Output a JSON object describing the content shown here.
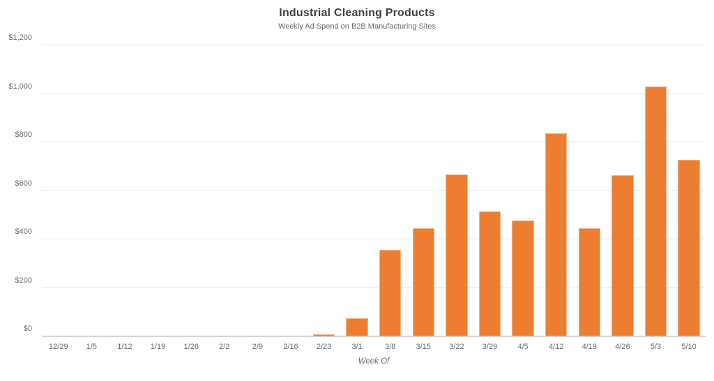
{
  "chart_data": {
    "type": "bar",
    "title": "Industrial Cleaning Products",
    "subtitle": "Weekly Ad Spend on B2B Manufacturing Sites",
    "xlabel": "Week Of",
    "ylabel": "",
    "ylim": [
      0,
      1200
    ],
    "grid": "horizontal",
    "legend_position": "none",
    "categories": [
      "12/29",
      "1/5",
      "1/12",
      "1/19",
      "1/26",
      "2/2",
      "2/9",
      "2/16",
      "2/23",
      "3/1",
      "3/8",
      "3/15",
      "3/22",
      "3/29",
      "4/5",
      "4/12",
      "4/19",
      "4/26",
      "5/3",
      "5/10"
    ],
    "values": [
      0,
      0,
      0,
      0,
      0,
      0,
      0,
      0,
      10,
      75,
      358,
      445,
      668,
      514,
      479,
      838,
      445,
      664,
      1030,
      727
    ],
    "yticks": [
      {
        "value": 0,
        "label": "$0"
      },
      {
        "value": 200,
        "label": "$200"
      },
      {
        "value": 400,
        "label": "$400"
      },
      {
        "value": 600,
        "label": "$600"
      },
      {
        "value": 800,
        "label": "$800"
      },
      {
        "value": 1000,
        "label": "$1,000"
      },
      {
        "value": 1200,
        "label": "$1,200"
      }
    ],
    "colors": {
      "bar": "#ED7D31",
      "gridline": "#E4E4E4",
      "axis_line": "#D6D6D6",
      "title": "#3F3F3F",
      "subtitle": "#6B6B6B",
      "tick_label": "#6B6B6B",
      "axis_title": "#6B6B6B",
      "background": "#FFFFFF"
    }
  }
}
